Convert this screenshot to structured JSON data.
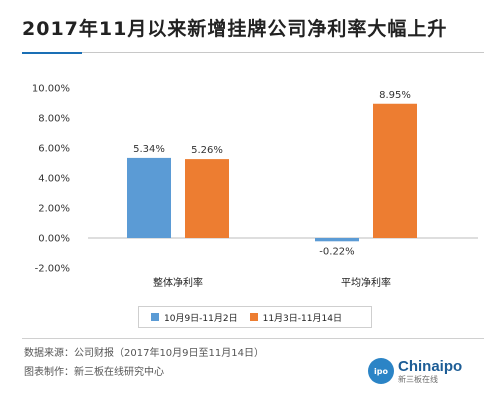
{
  "title": "2017年11月以来新增挂牌公司净利率大幅上升",
  "chart_data": {
    "type": "bar",
    "categories": [
      "整体净利率",
      "平均净利率"
    ],
    "series": [
      {
        "name": "10月9日-11月2日",
        "color": "#5b9bd5",
        "values": [
          5.34,
          -0.22
        ],
        "labels": [
          "5.34%",
          "-0.22%"
        ]
      },
      {
        "name": "11月3日-11月14日",
        "color": "#ed7d31",
        "values": [
          5.26,
          8.95
        ],
        "labels": [
          "5.26%",
          "8.95%"
        ]
      }
    ],
    "y_ticks": [
      "10.00%",
      "8.00%",
      "6.00%",
      "4.00%",
      "2.00%",
      "0.00%",
      "-2.00%"
    ],
    "ylim": [
      -2,
      10
    ],
    "grid": false,
    "legend_position": "bottom"
  },
  "source_note": "数据来源：公司财报（2017年10月9日至11月14日）",
  "maker_note": "图表制作：新三板在线研究中心",
  "logo": {
    "badge": "ipo",
    "name": "Chinaipo",
    "subtitle": "新三板在线"
  }
}
